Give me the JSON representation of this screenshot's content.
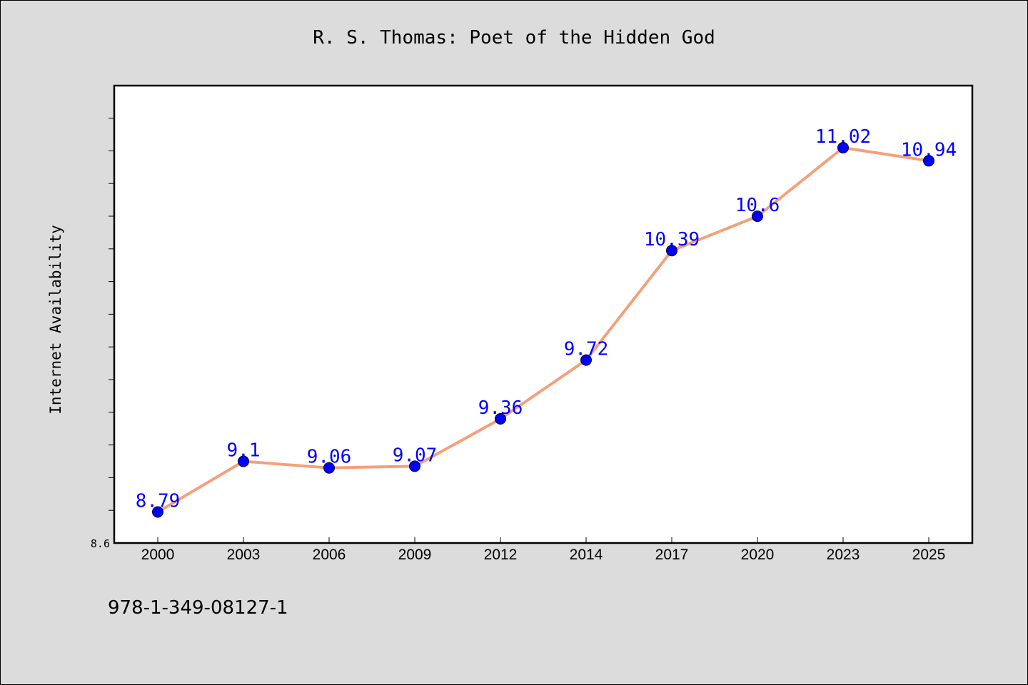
{
  "chart_data": {
    "type": "line",
    "title": "R. S. Thomas: Poet of the Hidden God",
    "xlabel": "",
    "ylabel": "Internet Availability",
    "categories": [
      "2000",
      "2003",
      "2006",
      "2009",
      "2012",
      "2014",
      "2017",
      "2020",
      "2023",
      "2025"
    ],
    "series": [
      {
        "values": [
          8.79,
          9.1,
          9.06,
          9.07,
          9.36,
          9.72,
          10.39,
          10.6,
          11.02,
          10.94
        ]
      }
    ],
    "y_tick_labels": [
      "8.6"
    ],
    "ylim": [
      8.6,
      11.4
    ],
    "grid": false,
    "legend": "none",
    "colors": {
      "line": "#f4a07a",
      "marker": "#0000ff",
      "data_label": "#0000ff",
      "plot_background": "#ffffff",
      "figure_background": "#dcdcdc"
    }
  },
  "footer": {
    "isbn": "978-1-349-08127-1"
  }
}
